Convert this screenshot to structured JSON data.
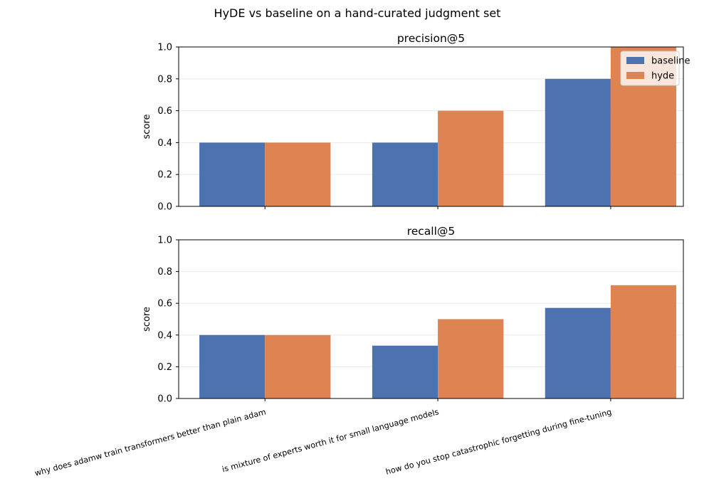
{
  "figure": {
    "title": "HyDE vs baseline on a hand-curated judgment set"
  },
  "chart_data": [
    {
      "type": "bar",
      "title": "precision@5",
      "xlabel": "",
      "ylabel": "score",
      "ylim": [
        0,
        1.0
      ],
      "yticks": [
        "0.0",
        "0.2",
        "0.4",
        "0.6",
        "0.8",
        "1.0"
      ],
      "categories": [
        "why does adamw train transformers better than plain adam",
        "is mixture of experts worth it for small language models",
        "how do you stop catastrophic forgetting during fine-tuning"
      ],
      "series": [
        {
          "name": "baseline",
          "color": "#4c72b0",
          "values": [
            0.4,
            0.4,
            0.8
          ]
        },
        {
          "name": "hyde",
          "color": "#dd8452",
          "values": [
            0.4,
            0.6,
            1.0
          ]
        }
      ],
      "grid": "y",
      "legend": "top-right",
      "x_tick_labels_shown": false
    },
    {
      "type": "bar",
      "title": "recall@5",
      "xlabel": "",
      "ylabel": "score",
      "ylim": [
        0,
        1.0
      ],
      "yticks": [
        "0.0",
        "0.2",
        "0.4",
        "0.6",
        "0.8",
        "1.0"
      ],
      "categories": [
        "why does adamw train transformers better than plain adam",
        "is mixture of experts worth it for small language models",
        "how do you stop catastrophic forgetting during fine-tuning"
      ],
      "series": [
        {
          "name": "baseline",
          "color": "#4c72b0",
          "values": [
            0.4,
            0.333,
            0.571
          ]
        },
        {
          "name": "hyde",
          "color": "#dd8452",
          "values": [
            0.4,
            0.5,
            0.714
          ]
        }
      ],
      "grid": "y",
      "legend": "none",
      "x_tick_labels_shown": true
    }
  ]
}
